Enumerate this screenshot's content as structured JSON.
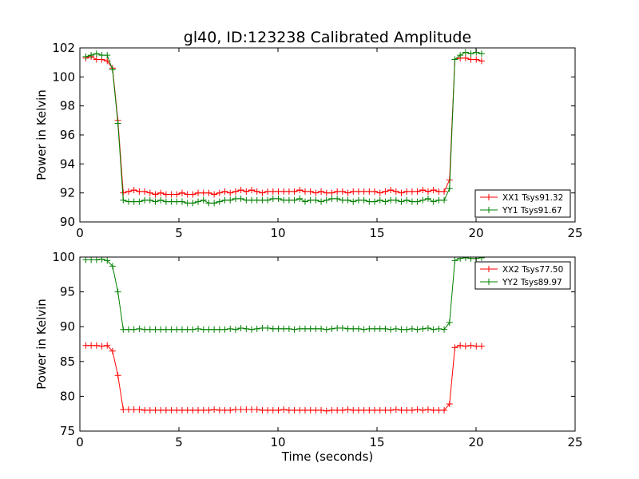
{
  "chart_data": [
    {
      "type": "line",
      "title": "gl40, ID:123238 Calibrated Amplitude",
      "xlabel": "",
      "ylabel": "Power in Kelvin",
      "xlim": [
        0,
        25
      ],
      "ylim": [
        90,
        102
      ],
      "xticks": [
        "0",
        "5",
        "10",
        "15",
        "20",
        "25"
      ],
      "yticks": [
        "90",
        "92",
        "94",
        "96",
        "98",
        "100",
        "102"
      ],
      "grid": false,
      "legend_position": "lower-right",
      "series": [
        {
          "name": "XX1 Tsys91.32",
          "color": "#ff0000",
          "x": [
            0.3,
            0.57,
            0.84,
            1.11,
            1.38,
            1.65,
            1.92,
            2.19,
            2.46,
            2.73,
            3.0,
            3.27,
            3.54,
            3.81,
            4.08,
            4.35,
            4.62,
            4.89,
            5.16,
            5.43,
            5.7,
            5.97,
            6.24,
            6.51,
            6.78,
            7.05,
            7.32,
            7.59,
            7.86,
            8.13,
            8.4,
            8.67,
            8.94,
            9.21,
            9.48,
            9.75,
            10.02,
            10.29,
            10.56,
            10.83,
            11.1,
            11.37,
            11.64,
            11.91,
            12.18,
            12.45,
            12.72,
            12.99,
            13.26,
            13.53,
            13.8,
            14.07,
            14.34,
            14.61,
            14.88,
            15.15,
            15.42,
            15.69,
            15.96,
            16.23,
            16.5,
            16.77,
            17.04,
            17.31,
            17.58,
            17.85,
            18.12,
            18.39,
            18.66,
            18.93,
            19.2,
            19.47,
            19.74,
            20.01,
            20.28
          ],
          "y": [
            101.3,
            101.4,
            101.2,
            101.2,
            101.1,
            100.6,
            97.0,
            92.0,
            92.1,
            92.2,
            92.1,
            92.1,
            92.0,
            91.9,
            92.0,
            91.9,
            91.9,
            91.9,
            92.0,
            91.9,
            91.9,
            92.0,
            92.0,
            92.0,
            91.9,
            92.0,
            92.1,
            92.0,
            92.1,
            92.2,
            92.1,
            92.2,
            92.1,
            92.0,
            92.1,
            92.1,
            92.1,
            92.1,
            92.1,
            92.1,
            92.2,
            92.1,
            92.1,
            92.0,
            92.1,
            92.0,
            92.0,
            92.1,
            92.1,
            92.0,
            92.1,
            92.1,
            92.1,
            92.1,
            92.1,
            92.0,
            92.1,
            92.2,
            92.1,
            92.0,
            92.1,
            92.1,
            92.1,
            92.2,
            92.1,
            92.2,
            92.1,
            92.1,
            92.9,
            101.2,
            101.3,
            101.3,
            101.2,
            101.2,
            101.1
          ]
        },
        {
          "name": "YY1 Tsys91.67",
          "color": "#008000",
          "x": [
            0.3,
            0.57,
            0.84,
            1.11,
            1.38,
            1.65,
            1.92,
            2.19,
            2.46,
            2.73,
            3.0,
            3.27,
            3.54,
            3.81,
            4.08,
            4.35,
            4.62,
            4.89,
            5.16,
            5.43,
            5.7,
            5.97,
            6.24,
            6.51,
            6.78,
            7.05,
            7.32,
            7.59,
            7.86,
            8.13,
            8.4,
            8.67,
            8.94,
            9.21,
            9.48,
            9.75,
            10.02,
            10.29,
            10.56,
            10.83,
            11.1,
            11.37,
            11.64,
            11.91,
            12.18,
            12.45,
            12.72,
            12.99,
            13.26,
            13.53,
            13.8,
            14.07,
            14.34,
            14.61,
            14.88,
            15.15,
            15.42,
            15.69,
            15.96,
            16.23,
            16.5,
            16.77,
            17.04,
            17.31,
            17.58,
            17.85,
            18.12,
            18.39,
            18.66,
            18.93,
            19.2,
            19.47,
            19.74,
            20.01,
            20.28
          ],
          "y": [
            101.4,
            101.5,
            101.6,
            101.5,
            101.5,
            100.5,
            96.8,
            91.5,
            91.4,
            91.4,
            91.4,
            91.5,
            91.5,
            91.4,
            91.5,
            91.4,
            91.4,
            91.4,
            91.4,
            91.3,
            91.3,
            91.4,
            91.5,
            91.3,
            91.3,
            91.4,
            91.5,
            91.5,
            91.6,
            91.6,
            91.5,
            91.5,
            91.5,
            91.5,
            91.5,
            91.6,
            91.6,
            91.5,
            91.5,
            91.5,
            91.6,
            91.4,
            91.5,
            91.5,
            91.4,
            91.5,
            91.6,
            91.6,
            91.5,
            91.5,
            91.4,
            91.5,
            91.5,
            91.4,
            91.4,
            91.5,
            91.4,
            91.5,
            91.5,
            91.4,
            91.5,
            91.4,
            91.4,
            91.5,
            91.6,
            91.4,
            91.5,
            91.5,
            92.3,
            101.2,
            101.5,
            101.7,
            101.6,
            101.7,
            101.6
          ]
        }
      ]
    },
    {
      "type": "line",
      "title": "",
      "xlabel": "Time (seconds)",
      "ylabel": "Power in Kelvin",
      "xlim": [
        0,
        25
      ],
      "ylim": [
        75,
        100
      ],
      "xticks": [
        "0",
        "5",
        "10",
        "15",
        "20",
        "25"
      ],
      "yticks": [
        "75",
        "80",
        "85",
        "90",
        "95",
        "100"
      ],
      "grid": false,
      "legend_position": "upper-right",
      "series": [
        {
          "name": "XX2 Tsys77.50",
          "color": "#ff0000",
          "x": [
            0.3,
            0.57,
            0.84,
            1.11,
            1.38,
            1.65,
            1.92,
            2.19,
            2.46,
            2.73,
            3.0,
            3.27,
            3.54,
            3.81,
            4.08,
            4.35,
            4.62,
            4.89,
            5.16,
            5.43,
            5.7,
            5.97,
            6.24,
            6.51,
            6.78,
            7.05,
            7.32,
            7.59,
            7.86,
            8.13,
            8.4,
            8.67,
            8.94,
            9.21,
            9.48,
            9.75,
            10.02,
            10.29,
            10.56,
            10.83,
            11.1,
            11.37,
            11.64,
            11.91,
            12.18,
            12.45,
            12.72,
            12.99,
            13.26,
            13.53,
            13.8,
            14.07,
            14.34,
            14.61,
            14.88,
            15.15,
            15.42,
            15.69,
            15.96,
            16.23,
            16.5,
            16.77,
            17.04,
            17.31,
            17.58,
            17.85,
            18.12,
            18.39,
            18.66,
            18.93,
            19.2,
            19.47,
            19.74,
            20.01,
            20.28
          ],
          "y": [
            87.3,
            87.3,
            87.3,
            87.2,
            87.3,
            86.5,
            83.0,
            78.1,
            78.1,
            78.1,
            78.1,
            78.0,
            78.0,
            78.0,
            78.0,
            78.0,
            78.0,
            78.0,
            78.0,
            78.0,
            78.0,
            78.0,
            78.0,
            78.0,
            78.1,
            78.0,
            78.0,
            78.0,
            78.1,
            78.1,
            78.1,
            78.1,
            78.1,
            78.0,
            78.0,
            78.0,
            78.0,
            78.1,
            78.0,
            78.0,
            78.0,
            78.0,
            78.0,
            78.0,
            78.0,
            77.9,
            78.0,
            78.0,
            78.0,
            78.1,
            78.0,
            78.0,
            78.0,
            78.0,
            78.0,
            78.0,
            78.0,
            78.0,
            78.1,
            78.0,
            78.0,
            78.0,
            78.1,
            78.0,
            78.1,
            78.0,
            78.0,
            78.0,
            78.9,
            87.0,
            87.3,
            87.2,
            87.3,
            87.2,
            87.2
          ]
        },
        {
          "name": "YY2 Tsys89.97",
          "color": "#008000",
          "x": [
            0.3,
            0.57,
            0.84,
            1.11,
            1.38,
            1.65,
            1.92,
            2.19,
            2.46,
            2.73,
            3.0,
            3.27,
            3.54,
            3.81,
            4.08,
            4.35,
            4.62,
            4.89,
            5.16,
            5.43,
            5.7,
            5.97,
            6.24,
            6.51,
            6.78,
            7.05,
            7.32,
            7.59,
            7.86,
            8.13,
            8.4,
            8.67,
            8.94,
            9.21,
            9.48,
            9.75,
            10.02,
            10.29,
            10.56,
            10.83,
            11.1,
            11.37,
            11.64,
            11.91,
            12.18,
            12.45,
            12.72,
            12.99,
            13.26,
            13.53,
            13.8,
            14.07,
            14.34,
            14.61,
            14.88,
            15.15,
            15.42,
            15.69,
            15.96,
            16.23,
            16.5,
            16.77,
            17.04,
            17.31,
            17.58,
            17.85,
            18.12,
            18.39,
            18.66,
            18.93,
            19.2,
            19.47,
            19.74,
            20.01,
            20.28
          ],
          "y": [
            99.6,
            99.6,
            99.6,
            99.7,
            99.5,
            98.7,
            95.0,
            89.6,
            89.6,
            89.6,
            89.7,
            89.6,
            89.6,
            89.6,
            89.6,
            89.6,
            89.6,
            89.6,
            89.6,
            89.6,
            89.6,
            89.7,
            89.6,
            89.6,
            89.6,
            89.6,
            89.6,
            89.7,
            89.6,
            89.8,
            89.7,
            89.6,
            89.7,
            89.8,
            89.8,
            89.7,
            89.7,
            89.7,
            89.7,
            89.6,
            89.7,
            89.7,
            89.7,
            89.7,
            89.7,
            89.6,
            89.7,
            89.8,
            89.8,
            89.7,
            89.7,
            89.7,
            89.6,
            89.7,
            89.7,
            89.7,
            89.7,
            89.6,
            89.7,
            89.6,
            89.6,
            89.7,
            89.6,
            89.7,
            89.8,
            89.6,
            89.7,
            89.6,
            90.6,
            99.5,
            99.8,
            99.9,
            99.8,
            99.8,
            99.9
          ]
        }
      ]
    }
  ]
}
